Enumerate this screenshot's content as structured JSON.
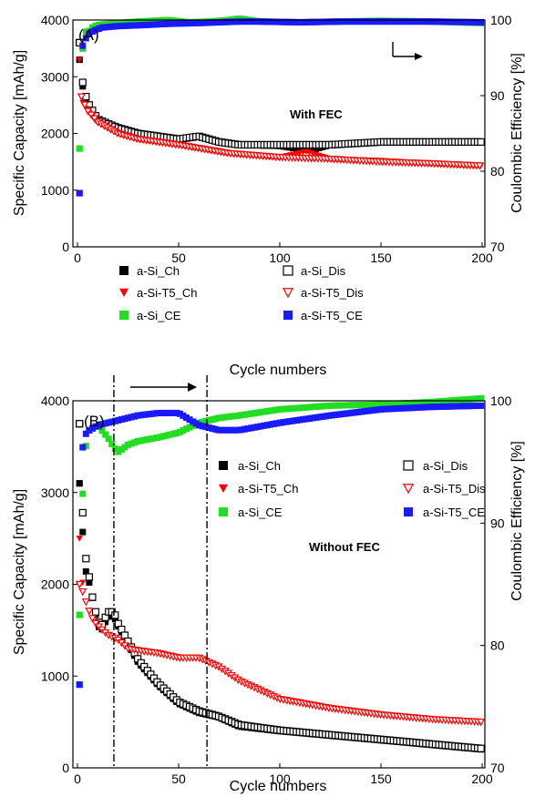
{
  "chart_data": [
    {
      "type": "scatter",
      "panel_label": "(A)",
      "annotation": "With FEC",
      "xlabel": "Cycle numbers",
      "ylabel_left": "Specific Capacity [mAh/g]",
      "ylabel_right": "Coulombic Efficiency [%]",
      "xlim": [
        0,
        200
      ],
      "ylim_left": [
        0,
        4000
      ],
      "ylim_right": [
        70,
        100
      ],
      "xticks": [
        "0",
        "50",
        "100",
        "150",
        "200"
      ],
      "yticks_left": [
        "0",
        "1000",
        "2000",
        "3000",
        "4000"
      ],
      "yticks_right": [
        "70",
        "80",
        "90",
        "100"
      ],
      "legend": [
        {
          "label": "a-Si_Ch",
          "color": "#000000",
          "marker": "square-filled"
        },
        {
          "label": "a-Si_Dis",
          "color": "#000000",
          "marker": "square-open"
        },
        {
          "label": "a-Si-T5_Ch",
          "color": "#ff0000",
          "marker": "triangle-down-filled"
        },
        {
          "label": "a-Si-T5_Dis",
          "color": "#ff0000",
          "marker": "triangle-down-open"
        },
        {
          "label": "a-Si_CE",
          "color": "#22dd22",
          "marker": "square-filled"
        },
        {
          "label": "a-Si-T5_CE",
          "color": "#1a1aff",
          "marker": "square-filled"
        }
      ],
      "series": [
        {
          "name": "a-Si_Ch",
          "axis": "left",
          "color": "#000000",
          "marker": "square-filled",
          "x": [
            1,
            2,
            3,
            5,
            10,
            20,
            30,
            50,
            60,
            70,
            80,
            100,
            115,
            125,
            150,
            175,
            200
          ],
          "y": [
            3300,
            2950,
            2750,
            2500,
            2250,
            2100,
            2000,
            1900,
            1950,
            1850,
            1800,
            1780,
            1700,
            1800,
            1850,
            1850,
            1850
          ]
        },
        {
          "name": "a-Si_Dis",
          "axis": "left",
          "color": "#000000",
          "marker": "square-open",
          "x": [
            1,
            2,
            3,
            5,
            10,
            20,
            30,
            50,
            60,
            70,
            80,
            100,
            125,
            150,
            175,
            200
          ],
          "y": [
            3600,
            3050,
            2800,
            2550,
            2250,
            2100,
            2000,
            1900,
            1950,
            1850,
            1800,
            1800,
            1800,
            1850,
            1850,
            1850
          ]
        },
        {
          "name": "a-Si-T5_Ch",
          "axis": "left",
          "color": "#ff0000",
          "marker": "triangle-down-filled",
          "x": [
            1,
            2,
            3,
            5,
            10,
            20,
            30,
            50,
            75,
            100,
            113,
            125,
            150,
            175,
            200
          ],
          "y": [
            3300,
            2600,
            2500,
            2400,
            2200,
            2000,
            1900,
            1800,
            1650,
            1580,
            1680,
            1550,
            1520,
            1470,
            1430
          ]
        },
        {
          "name": "a-Si-T5_Dis",
          "axis": "left",
          "color": "#ff0000",
          "marker": "triangle-down-open",
          "x": [
            2,
            3,
            5,
            10,
            20,
            30,
            50,
            75,
            100,
            125,
            150,
            175,
            200
          ],
          "y": [
            2650,
            2550,
            2400,
            2200,
            2000,
            1900,
            1800,
            1650,
            1580,
            1550,
            1500,
            1470,
            1430
          ]
        },
        {
          "name": "a-Si_CE",
          "axis": "right",
          "color": "#22dd22",
          "marker": "square-filled",
          "x": [
            1,
            2,
            3,
            4,
            5,
            8,
            12,
            20,
            30,
            45,
            55,
            65,
            75,
            80,
            90,
            110,
            130,
            150,
            175,
            200
          ],
          "y": [
            83,
            97.3,
            95.5,
            98.5,
            98.3,
            99.2,
            99.4,
            99.6,
            99.8,
            100,
            99.7,
            99.8,
            100,
            100.2,
            99.8,
            99.7,
            99.8,
            99.9,
            99.8,
            99.6
          ]
        },
        {
          "name": "a-Si-T5_CE",
          "axis": "right",
          "color": "#1a1aff",
          "marker": "square-filled",
          "x": [
            1,
            2,
            3,
            4,
            5,
            8,
            12,
            20,
            30,
            45,
            60,
            70,
            80,
            90,
            110,
            130,
            150,
            175,
            200
          ],
          "y": [
            77.1,
            96,
            97,
            97.5,
            98,
            98.6,
            99,
            99.2,
            99.3,
            99.5,
            99.6,
            99.7,
            99.8,
            99.8,
            99.7,
            99.8,
            99.8,
            99.8,
            99.7
          ]
        }
      ]
    },
    {
      "type": "scatter",
      "panel_label": "(B)",
      "annotation": "Without FEC",
      "xlabel": "Cycle numbers",
      "ylabel_left": "Specific Capacity [mAh/g]",
      "ylabel_right": "Coulombic Efficiency [%]",
      "xlim": [
        0,
        200
      ],
      "ylim_left": [
        0,
        4000
      ],
      "ylim_right": [
        70,
        100
      ],
      "xticks": [
        "0",
        "50",
        "100",
        "150",
        "200"
      ],
      "yticks_left": [
        "0",
        "1000",
        "2000",
        "3000",
        "4000"
      ],
      "yticks_right": [
        "70",
        "80",
        "90",
        "100"
      ],
      "vlines_x": [
        18,
        64
      ],
      "legend": [
        {
          "label": "a-Si_Ch",
          "color": "#000000",
          "marker": "square-filled"
        },
        {
          "label": "a-Si_Dis",
          "color": "#000000",
          "marker": "square-open"
        },
        {
          "label": "a-Si-T5_Ch",
          "color": "#ff0000",
          "marker": "triangle-down-filled"
        },
        {
          "label": "a-Si-T5_Dis",
          "color": "#ff0000",
          "marker": "triangle-down-open"
        },
        {
          "label": "a-Si_CE",
          "color": "#22dd22",
          "marker": "square-filled"
        },
        {
          "label": "a-Si-T5_CE",
          "color": "#1a1aff",
          "marker": "square-filled"
        }
      ],
      "series": [
        {
          "name": "a-Si_Ch",
          "axis": "left",
          "color": "#000000",
          "marker": "square-filled",
          "x": [
            1,
            2,
            3,
            4,
            5,
            7,
            10,
            12,
            15,
            18,
            20,
            25,
            30,
            40,
            50,
            60,
            70,
            80,
            100,
            125,
            150,
            175,
            200
          ],
          "y": [
            3100,
            2750,
            2450,
            2150,
            2100,
            1900,
            1550,
            1500,
            1650,
            1650,
            1550,
            1350,
            1150,
            900,
            700,
            600,
            550,
            450,
            400,
            350,
            300,
            250,
            200
          ]
        },
        {
          "name": "a-Si_Dis",
          "axis": "left",
          "color": "#000000",
          "marker": "square-open",
          "x": [
            1,
            2,
            3,
            4,
            5,
            7,
            10,
            12,
            15,
            18,
            20,
            25,
            30,
            40,
            50,
            60,
            70,
            80,
            100,
            125,
            150,
            175,
            200
          ],
          "y": [
            3750,
            3200,
            2500,
            2300,
            2200,
            1900,
            1600,
            1550,
            1700,
            1700,
            1580,
            1380,
            1180,
            920,
            720,
            620,
            560,
            470,
            410,
            360,
            310,
            260,
            210
          ]
        },
        {
          "name": "a-Si-T5_Ch",
          "axis": "left",
          "color": "#ff0000",
          "marker": "triangle-down-filled",
          "x": [
            1,
            3,
            5,
            8,
            10,
            15,
            20,
            25,
            30,
            40,
            50,
            60,
            70,
            80,
            100,
            125,
            150,
            175,
            200
          ],
          "y": [
            2500,
            1900,
            1750,
            1600,
            1550,
            1450,
            1400,
            1300,
            1280,
            1250,
            1200,
            1200,
            1100,
            950,
            750,
            650,
            580,
            530,
            500
          ]
        },
        {
          "name": "a-Si-T5_Dis",
          "axis": "left",
          "color": "#ff0000",
          "marker": "triangle-down-open",
          "x": [
            1,
            3,
            5,
            8,
            10,
            15,
            20,
            25,
            30,
            40,
            50,
            60,
            70,
            80,
            100,
            125,
            150,
            175,
            200
          ],
          "y": [
            2000,
            1900,
            1750,
            1600,
            1550,
            1450,
            1400,
            1300,
            1280,
            1250,
            1200,
            1200,
            1100,
            950,
            750,
            650,
            580,
            530,
            500
          ]
        },
        {
          "name": "a-Si_CE",
          "axis": "right",
          "color": "#22dd22",
          "marker": "square-filled",
          "x": [
            1,
            2,
            3,
            4,
            5,
            8,
            10,
            15,
            18,
            20,
            25,
            30,
            40,
            50,
            60,
            70,
            80,
            100,
            125,
            150,
            175,
            200
          ],
          "y": [
            82.5,
            90,
            94,
            96,
            97.5,
            97.8,
            98,
            97,
            96.2,
            95.8,
            96.4,
            96.7,
            97,
            97.4,
            98.2,
            98.6,
            98.8,
            99.3,
            99.6,
            99.7,
            99.9,
            100.2
          ]
        },
        {
          "name": "a-Si-T5_CE",
          "axis": "right",
          "color": "#1a1aff",
          "marker": "square-filled",
          "x": [
            1,
            2,
            3,
            5,
            8,
            10,
            15,
            20,
            30,
            40,
            50,
            60,
            65,
            70,
            80,
            100,
            125,
            150,
            175,
            200
          ],
          "y": [
            76.8,
            95,
            97,
            97.5,
            97.8,
            98,
            98.2,
            98.4,
            98.8,
            99,
            99,
            98,
            97.8,
            97.6,
            97.6,
            98.2,
            98.8,
            99.3,
            99.5,
            99.6
          ]
        }
      ]
    }
  ]
}
